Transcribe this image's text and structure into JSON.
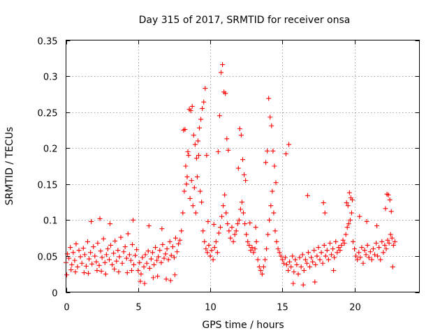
{
  "chart_data": {
    "type": "scatter",
    "title": "Day 315 of 2017, SRMTID for receiver onsa",
    "xlabel": "GPS time / hours",
    "ylabel": "SRMTID / TECUs",
    "xlim": [
      0,
      24.5
    ],
    "ylim": [
      0,
      0.35
    ],
    "xticks": [
      0,
      5,
      10,
      15,
      20
    ],
    "xtick_labels": [
      "0",
      "5",
      "10",
      "15",
      "20"
    ],
    "yticks": [
      0,
      0.05,
      0.1,
      0.15,
      0.2,
      0.25,
      0.3,
      0.35
    ],
    "ytick_labels": [
      "0",
      "0.05",
      "0.1",
      "0.15",
      "0.2",
      "0.25",
      "0.3",
      "0.35"
    ],
    "grid": true,
    "marker": "+",
    "series": [
      {
        "name": "SRMTID",
        "color": "#ff0000",
        "x": [
          0.0,
          0.1,
          0.2,
          0.3,
          0.4,
          0.5,
          0.6,
          0.7,
          0.8,
          0.9,
          1.0,
          1.1,
          1.2,
          1.3,
          1.4,
          1.5,
          1.6,
          1.7,
          1.8,
          1.9,
          2.0,
          2.1,
          2.2,
          2.3,
          2.4,
          2.5,
          2.6,
          2.7,
          2.8,
          2.9,
          3.0,
          3.1,
          3.2,
          3.3,
          3.4,
          3.5,
          3.6,
          3.7,
          3.8,
          3.9,
          4.0,
          4.1,
          4.2,
          4.3,
          4.4,
          4.5,
          4.6,
          4.7,
          4.8,
          4.9,
          5.0,
          5.1,
          5.2,
          5.3,
          5.4,
          5.5,
          5.6,
          5.7,
          5.8,
          5.9,
          6.0,
          6.1,
          6.2,
          6.3,
          6.4,
          6.5,
          6.6,
          6.7,
          6.8,
          6.9,
          7.0,
          7.1,
          7.2,
          7.3,
          7.4,
          7.5,
          7.6,
          7.7,
          7.8,
          7.9,
          8.0,
          8.1,
          8.2,
          8.3,
          8.4,
          8.5,
          8.6,
          8.7,
          8.8,
          8.9,
          9.0,
          9.1,
          9.2,
          9.3,
          9.4,
          9.5,
          9.6,
          9.7,
          9.8,
          9.9,
          10.0,
          10.1,
          10.2,
          10.3,
          10.4,
          10.5,
          10.6,
          10.7,
          10.8,
          10.9,
          11.0,
          11.1,
          11.2,
          11.3,
          11.4,
          11.5,
          11.6,
          11.7,
          11.8,
          11.9,
          12.0,
          12.1,
          12.2,
          12.3,
          12.4,
          12.5,
          12.6,
          12.7,
          12.8,
          12.9,
          13.0,
          13.1,
          13.2,
          13.3,
          13.4,
          13.5,
          13.6,
          13.7,
          13.8,
          13.9,
          14.0,
          14.1,
          14.2,
          14.3,
          14.4,
          14.5,
          14.6,
          14.7,
          14.8,
          14.9,
          15.0,
          15.1,
          15.2,
          15.3,
          15.4,
          15.5,
          15.6,
          15.7,
          15.8,
          15.9,
          16.0,
          16.1,
          16.2,
          16.3,
          16.4,
          16.5,
          16.6,
          16.7,
          16.8,
          16.9,
          17.0,
          17.1,
          17.2,
          17.3,
          17.4,
          17.5,
          17.6,
          17.7,
          17.8,
          17.9,
          18.0,
          18.1,
          18.2,
          18.3,
          18.4,
          18.5,
          18.6,
          18.7,
          18.8,
          18.9,
          19.0,
          19.1,
          19.2,
          19.3,
          19.4,
          19.5,
          19.6,
          19.7,
          19.8,
          19.9,
          20.0,
          20.1,
          20.2,
          20.3,
          20.4,
          20.5,
          20.6,
          20.7,
          20.8,
          20.9,
          21.0,
          21.1,
          21.2,
          21.3,
          21.4,
          21.5,
          21.6,
          21.7,
          21.8,
          21.9,
          22.0,
          22.1,
          22.2,
          22.3,
          22.4,
          22.5,
          22.6,
          22.7,
          22.8,
          0.05,
          0.35,
          0.65,
          1.25,
          1.55,
          2.15,
          2.45,
          2.75,
          3.35,
          3.65,
          4.25,
          4.55,
          5.15,
          5.45,
          6.05,
          6.35,
          6.95,
          7.25,
          7.55,
          8.15,
          8.25,
          8.35,
          8.45,
          8.55,
          8.65,
          8.75,
          8.85,
          8.95,
          9.05,
          9.15,
          9.25,
          9.35,
          9.45,
          9.55,
          9.65,
          9.75,
          10.55,
          10.65,
          10.75,
          10.85,
          10.95,
          11.05,
          11.15,
          11.25,
          11.95,
          12.05,
          12.15,
          12.25,
          12.35,
          12.45,
          13.85,
          13.95,
          14.05,
          14.15,
          14.25,
          14.35,
          14.45,
          14.55,
          15.25,
          15.45,
          16.75,
          17.85,
          17.95,
          19.45,
          19.55,
          19.65,
          19.75,
          19.85,
          22.15,
          22.25,
          22.35,
          22.45,
          22.55,
          1.75,
          2.35,
          3.05,
          4.65,
          5.75,
          6.65,
          9.85,
          10.25,
          12.75,
          13.15,
          15.75,
          16.45,
          17.25,
          18.55,
          20.35,
          20.85,
          21.55,
          22.65
        ],
        "y": [
          0.041,
          0.053,
          0.047,
          0.062,
          0.038,
          0.055,
          0.044,
          0.067,
          0.035,
          0.058,
          0.049,
          0.04,
          0.061,
          0.052,
          0.036,
          0.07,
          0.046,
          0.055,
          0.039,
          0.063,
          0.05,
          0.042,
          0.068,
          0.037,
          0.057,
          0.048,
          0.074,
          0.041,
          0.052,
          0.06,
          0.045,
          0.065,
          0.038,
          0.054,
          0.071,
          0.043,
          0.058,
          0.049,
          0.076,
          0.04,
          0.056,
          0.063,
          0.047,
          0.081,
          0.052,
          0.044,
          0.066,
          0.038,
          0.051,
          0.059,
          0.03,
          0.041,
          0.025,
          0.048,
          0.035,
          0.052,
          0.04,
          0.057,
          0.033,
          0.046,
          0.055,
          0.038,
          0.062,
          0.044,
          0.049,
          0.058,
          0.041,
          0.066,
          0.047,
          0.053,
          0.06,
          0.045,
          0.07,
          0.051,
          0.063,
          0.048,
          0.075,
          0.056,
          0.067,
          0.072,
          0.085,
          0.11,
          0.14,
          0.175,
          0.16,
          0.19,
          0.13,
          0.155,
          0.12,
          0.145,
          0.11,
          0.16,
          0.19,
          0.14,
          0.125,
          0.085,
          0.07,
          0.06,
          0.055,
          0.065,
          0.05,
          0.058,
          0.045,
          0.062,
          0.07,
          0.055,
          0.082,
          0.09,
          0.105,
          0.12,
          0.135,
          0.11,
          0.095,
          0.085,
          0.075,
          0.09,
          0.07,
          0.08,
          0.085,
          0.095,
          0.1,
          0.115,
          0.125,
          0.11,
          0.095,
          0.08,
          0.07,
          0.065,
          0.058,
          0.062,
          0.055,
          0.06,
          0.07,
          0.045,
          0.035,
          0.03,
          0.025,
          0.035,
          0.045,
          0.06,
          0.08,
          0.1,
          0.12,
          0.14,
          0.11,
          0.085,
          0.07,
          0.06,
          0.055,
          0.05,
          0.045,
          0.04,
          0.048,
          0.038,
          0.03,
          0.042,
          0.035,
          0.05,
          0.028,
          0.045,
          0.038,
          0.025,
          0.048,
          0.035,
          0.052,
          0.03,
          0.045,
          0.04,
          0.055,
          0.035,
          0.048,
          0.042,
          0.058,
          0.038,
          0.05,
          0.062,
          0.045,
          0.055,
          0.04,
          0.065,
          0.05,
          0.058,
          0.045,
          0.068,
          0.052,
          0.06,
          0.048,
          0.07,
          0.055,
          0.062,
          0.058,
          0.065,
          0.072,
          0.068,
          0.08,
          0.09,
          0.095,
          0.1,
          0.11,
          0.07,
          0.06,
          0.05,
          0.045,
          0.055,
          0.048,
          0.062,
          0.04,
          0.058,
          0.052,
          0.065,
          0.048,
          0.056,
          0.045,
          0.06,
          0.052,
          0.068,
          0.05,
          0.062,
          0.045,
          0.07,
          0.055,
          0.065,
          0.06,
          0.072,
          0.068,
          0.08,
          0.075,
          0.065,
          0.07,
          0.024,
          0.031,
          0.028,
          0.027,
          0.026,
          0.03,
          0.029,
          0.025,
          0.032,
          0.028,
          0.027,
          0.03,
          0.015,
          0.012,
          0.02,
          0.022,
          0.018,
          0.016,
          0.024,
          0.225,
          0.226,
          0.15,
          0.195,
          0.254,
          0.252,
          0.258,
          0.218,
          0.205,
          0.186,
          0.21,
          0.228,
          0.24,
          0.255,
          0.264,
          0.283,
          0.19,
          0.195,
          0.245,
          0.305,
          0.316,
          0.278,
          0.276,
          0.213,
          0.197,
          0.172,
          0.227,
          0.218,
          0.184,
          0.163,
          0.155,
          0.18,
          0.196,
          0.269,
          0.243,
          0.231,
          0.196,
          0.175,
          0.152,
          0.192,
          0.205,
          0.134,
          0.124,
          0.11,
          0.124,
          0.12,
          0.138,
          0.131,
          0.128,
          0.116,
          0.136,
          0.135,
          0.128,
          0.112,
          0.098,
          0.102,
          0.095,
          0.1,
          0.092,
          0.088,
          0.098,
          0.094,
          0.096,
          0.09,
          0.012,
          0.01,
          0.014,
          0.03,
          0.105,
          0.098,
          0.092,
          0.035
        ]
      }
    ]
  }
}
